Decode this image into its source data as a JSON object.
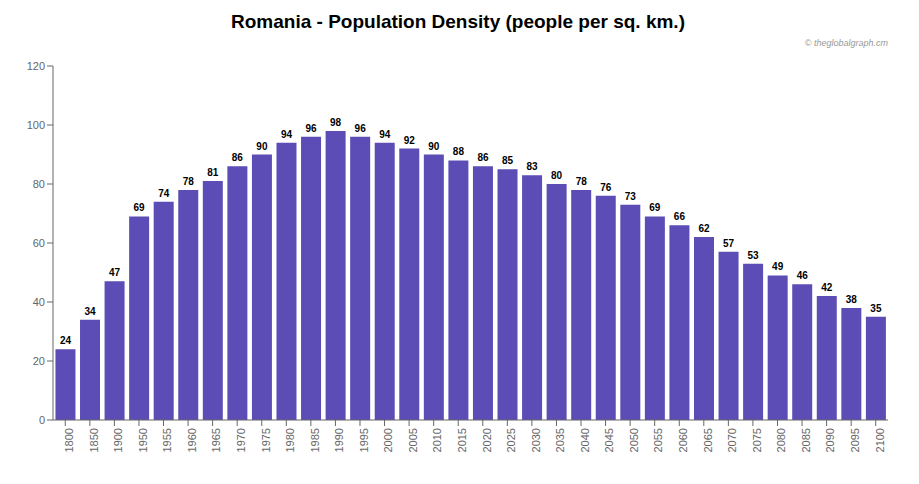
{
  "chart_data": {
    "type": "bar",
    "title": "Romania - Population Density (people per sq. km.)",
    "annotations": [
      "© theglobalgraph.cm"
    ],
    "categories": [
      1800,
      1850,
      1900,
      1950,
      1955,
      1960,
      1965,
      1970,
      1975,
      1980,
      1985,
      1990,
      1995,
      2000,
      2005,
      2010,
      2015,
      2020,
      2025,
      2030,
      2035,
      2040,
      2045,
      2050,
      2055,
      2060,
      2065,
      2070,
      2075,
      2080,
      2085,
      2090,
      2095,
      2100
    ],
    "values": [
      24,
      34,
      47,
      69,
      74,
      78,
      81,
      86,
      90,
      94,
      96,
      98,
      96,
      94,
      92,
      90,
      88,
      86,
      85,
      83,
      80,
      78,
      76,
      73,
      69,
      66,
      62,
      57,
      53,
      49,
      46,
      42,
      38,
      35
    ],
    "color": "#5B4DB5",
    "ylim": [
      0,
      120
    ],
    "yticks": [
      0,
      20,
      40,
      60,
      80,
      100,
      120
    ],
    "grid": false,
    "data_labels": true
  }
}
